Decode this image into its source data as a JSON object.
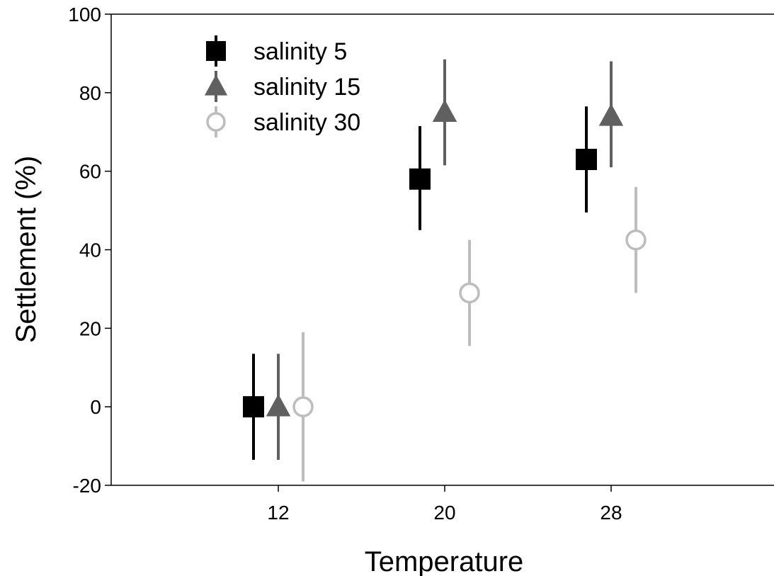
{
  "chart_data": {
    "type": "scatter",
    "xlabel": "Temperature",
    "ylabel": "Settlement (%)",
    "categories": [
      "12",
      "20",
      "28"
    ],
    "ylim": [
      -20,
      100
    ],
    "yticks": [
      "100",
      "80",
      "60",
      "40",
      "20",
      "0",
      "-20"
    ],
    "grid": false,
    "legend_position": "top-left",
    "series": [
      {
        "name": "salinity 5",
        "marker": "square",
        "color": "#000000",
        "values": [
          0,
          58,
          63
        ],
        "error_low": [
          -13.5,
          45,
          49.5
        ],
        "error_high": [
          13.5,
          71.5,
          76.5
        ]
      },
      {
        "name": "salinity 15",
        "marker": "triangle",
        "color": "#606060",
        "values": [
          0,
          75,
          74
        ],
        "error_low": [
          -13.5,
          61.5,
          61
        ],
        "error_high": [
          13.5,
          88.5,
          88
        ]
      },
      {
        "name": "salinity 30",
        "marker": "open-circle",
        "color": "#bdbdbd",
        "values": [
          0,
          29,
          42.5
        ],
        "error_low": [
          -19,
          15.5,
          29
        ],
        "error_high": [
          19,
          42.5,
          56
        ]
      }
    ]
  }
}
